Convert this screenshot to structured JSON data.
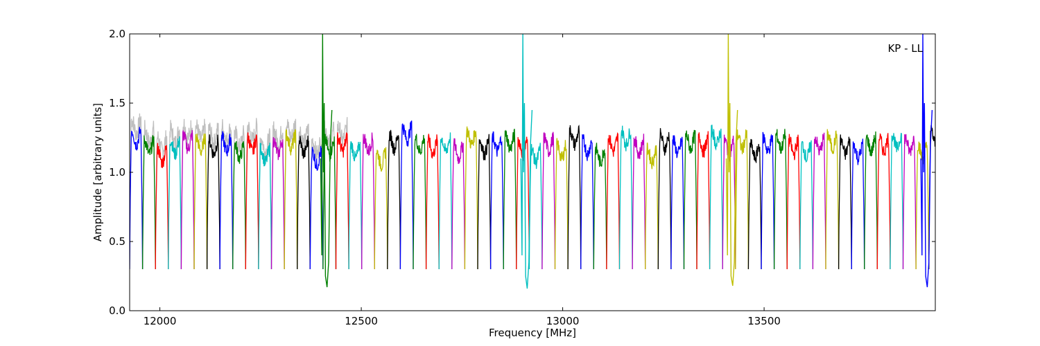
{
  "chart_data": {
    "type": "line",
    "annotation": "KP - LL",
    "xlabel": "Frequency [MHz]",
    "ylabel": "Amplitude [arbitrary units]",
    "xlim": [
      11925,
      13925
    ],
    "ylim": [
      0.0,
      2.0
    ],
    "x_ticks": [
      12000,
      12500,
      13000,
      13500
    ],
    "x_tick_labels": [
      "12000",
      "12500",
      "13000",
      "13500"
    ],
    "y_ticks": [
      0.0,
      0.5,
      1.0,
      1.5,
      2.0
    ],
    "y_tick_labels": [
      "0.0",
      "0.5",
      "1.0",
      "1.5",
      "2.0"
    ],
    "grid": false,
    "legend": "none",
    "channel_width_mhz": 32,
    "channel_start_mhz": 11925,
    "edge_floor": 0.3,
    "color_cycle": [
      "#0000ff",
      "#008000",
      "#ff0000",
      "#00bfbf",
      "#bf00bf",
      "#bfbf00",
      "#000000"
    ],
    "background_series_color": "#bfbfbf",
    "channel_levels": [
      1.25,
      1.18,
      1.12,
      1.18,
      1.22,
      1.2,
      1.18,
      1.2,
      1.15,
      1.2,
      1.12,
      1.18,
      1.22,
      1.18,
      1.1,
      1.18,
      1.2,
      1.15,
      1.2,
      1.1,
      1.22,
      1.28,
      1.2,
      1.18,
      1.2,
      1.15,
      1.25,
      1.18,
      1.2,
      1.22,
      1.18,
      1.12,
      1.2,
      1.15,
      1.25,
      1.18,
      1.12,
      1.2,
      1.25,
      1.18,
      1.12,
      1.22,
      1.18,
      1.22,
      1.2,
      1.25,
      1.18,
      1.22,
      1.15,
      1.2,
      1.22,
      1.18,
      1.15,
      1.2,
      1.22,
      1.18,
      1.15,
      1.2,
      1.2,
      1.22,
      1.2,
      1.15,
      1.25
    ],
    "spikes": [
      {
        "x": 12405,
        "top": 2.0,
        "dip": 0.17,
        "color": "#008000"
      },
      {
        "x": 12902,
        "top": 2.0,
        "dip": 0.16,
        "color": "#00bfbf"
      },
      {
        "x": 13412,
        "top": 2.0,
        "dip": 0.18,
        "color": "#bfbf00"
      },
      {
        "x": 13895,
        "top": 2.0,
        "dip": 0.17,
        "color": "#0000ff"
      }
    ]
  }
}
